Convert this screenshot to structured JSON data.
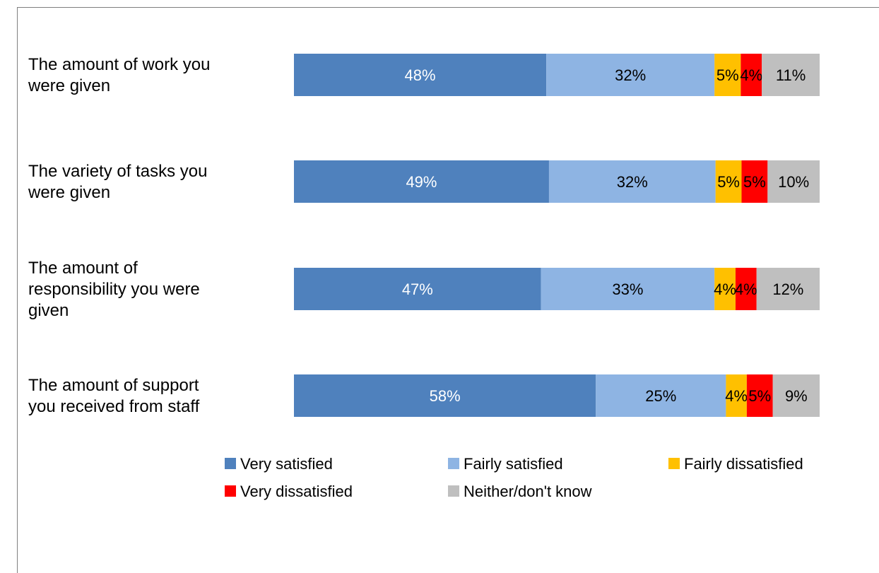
{
  "chart_data": {
    "type": "bar",
    "orientation": "horizontal",
    "stacked": true,
    "categories": [
      [
        "The amount of work you",
        "were given"
      ],
      [
        "The variety of tasks you",
        "were given"
      ],
      [
        "The amount of",
        "responsibility you were",
        "given"
      ],
      [
        "The amount of support",
        "you received from staff"
      ]
    ],
    "series": [
      {
        "name": "Very satisfied",
        "color": "#4F81BD",
        "label_color": "#ffffff",
        "values": [
          48,
          49,
          47,
          58
        ],
        "labels": [
          "48%",
          "49%",
          "47%",
          "58%"
        ]
      },
      {
        "name": "Fairly satisfied",
        "color": "#8EB4E3",
        "label_color": "#000000",
        "values": [
          32,
          32,
          33,
          25
        ],
        "labels": [
          "32%",
          "32%",
          "33%",
          "25%"
        ]
      },
      {
        "name": "Fairly dissatisfied",
        "color": "#FFC000",
        "label_color": "#000000",
        "values": [
          5,
          5,
          4,
          4
        ],
        "labels": [
          "5%",
          "5%",
          "4%",
          "4%"
        ]
      },
      {
        "name": "Very dissatisfied",
        "color": "#FF0000",
        "label_color": "#000000",
        "values": [
          4,
          5,
          4,
          5
        ],
        "labels": [
          "4%",
          "5%",
          "4%",
          "5%"
        ]
      },
      {
        "name": "Neither/don't know",
        "color": "#BFBFBF",
        "label_color": "#000000",
        "values": [
          11,
          10,
          12,
          9
        ],
        "labels": [
          "11%",
          "10%",
          "12%",
          "9%"
        ]
      }
    ],
    "xlim": [
      0,
      100
    ],
    "grid": false,
    "legend_position": "bottom"
  }
}
